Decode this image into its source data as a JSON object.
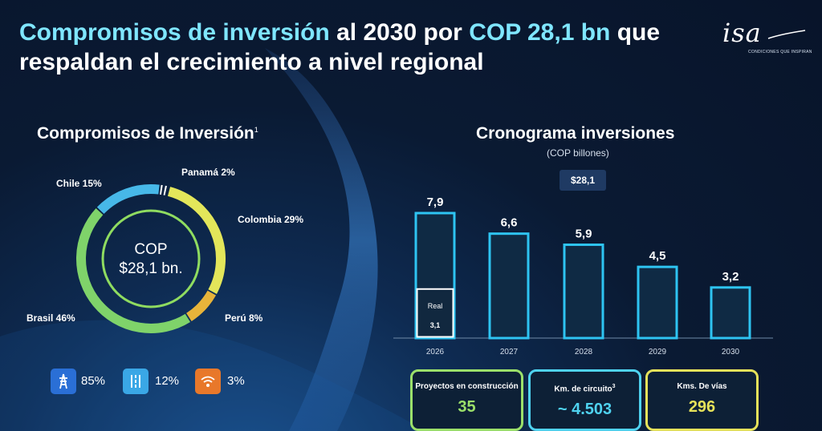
{
  "title": {
    "part1": "Compromisos de inversión",
    "part2": " al 2030 por ",
    "part3": "COP 28,1 bn",
    "part4": " que respaldan el crecimiento a nivel regional"
  },
  "logo": {
    "text": "isa",
    "tagline": "CONDICIONES QUE INSPIRAN"
  },
  "colors": {
    "accent_cyan": "#7fe6ff",
    "colombia": "#e3e65a",
    "brasil": "#7fd36a",
    "chile": "#47b8e8",
    "peru": "#e8b43a",
    "panama": "#ffffff",
    "bar_outline": "#2ec4f2",
    "kpi_green": "#9be06a",
    "kpi_cyan": "#4fd3f0",
    "kpi_yellow": "#e6e25a"
  },
  "left": {
    "title": "Compromisos de Inversión",
    "title_sup": "1",
    "center_line1": "COP",
    "center_line2": "$28,1 bn.",
    "badges": [
      {
        "icon": "transmission-tower-icon",
        "value": "85%",
        "color": "#2a6fd6"
      },
      {
        "icon": "road-lanes-icon",
        "value": "12%",
        "color": "#3aa7e6"
      },
      {
        "icon": "wifi-signal-icon",
        "value": "3%",
        "color": "#e8782a"
      }
    ]
  },
  "right": {
    "title": "Cronograma inversiones",
    "subtitle": "(COP billones)",
    "total_tag": "$28,1",
    "real_label": "Real",
    "real_value": "3,1"
  },
  "chart_data": [
    {
      "type": "pie",
      "title": "Compromisos de Inversión",
      "categories": [
        "Colombia",
        "Perú",
        "Brasil",
        "Chile",
        "Panamá"
      ],
      "values": [
        29,
        8,
        46,
        15,
        2
      ],
      "labels": [
        "Colombia 29%",
        "Perú 8%",
        "Brasil 46%",
        "Chile 15%",
        "Panamá 2%"
      ],
      "unit": "%"
    },
    {
      "type": "bar",
      "title": "Cronograma inversiones",
      "subtitle": "(COP billones)",
      "categories": [
        "2026",
        "2027",
        "2028",
        "2029",
        "2030"
      ],
      "values": [
        7.9,
        6.6,
        5.9,
        4.5,
        3.2
      ],
      "value_labels": [
        "7,9",
        "6,6",
        "5,9",
        "4,5",
        "3,2"
      ],
      "real": {
        "category": "2026",
        "value": 3.1,
        "label": "Real",
        "value_label": "3,1"
      },
      "total": "$28,1",
      "ylim": [
        0,
        7.9
      ]
    }
  ],
  "kpis": [
    {
      "label": "Proyectos en construcción",
      "value": "35"
    },
    {
      "label": "Km. de circuito",
      "label_sup": "3",
      "value": "~ 4.503"
    },
    {
      "label": "Kms. De vías",
      "value": "296"
    }
  ]
}
